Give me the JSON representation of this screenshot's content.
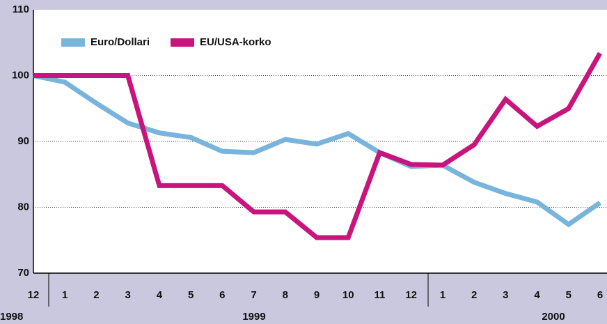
{
  "chart_data": {
    "type": "line",
    "categories": [
      "12",
      "1",
      "2",
      "3",
      "4",
      "5",
      "6",
      "7",
      "8",
      "9",
      "10",
      "11",
      "12",
      "1",
      "2",
      "3",
      "4",
      "5",
      "6"
    ],
    "year_labels": [
      "1998",
      "1999",
      "2000"
    ],
    "series": [
      {
        "name": "Euro/Dollari",
        "color": "#78b4dc",
        "values": [
          100,
          99,
          95.8,
          92.8,
          91.3,
          90.6,
          88.5,
          88.3,
          90.3,
          89.6,
          91.2,
          88.3,
          86.2,
          86.4,
          83.8,
          82.1,
          80.8,
          77.4,
          80.7
        ]
      },
      {
        "name": "EU/USA-korko",
        "color": "#c8147c",
        "values": [
          100,
          100,
          100,
          100,
          83.3,
          83.3,
          83.3,
          79.3,
          79.3,
          75.4,
          75.4,
          88.3,
          86.5,
          86.4,
          89.5,
          96.4,
          92.3,
          95,
          103.4
        ]
      }
    ],
    "ylim": [
      70,
      110
    ],
    "yticks": [
      70,
      80,
      90,
      100,
      110
    ],
    "grid": true,
    "legend": "top-left"
  }
}
